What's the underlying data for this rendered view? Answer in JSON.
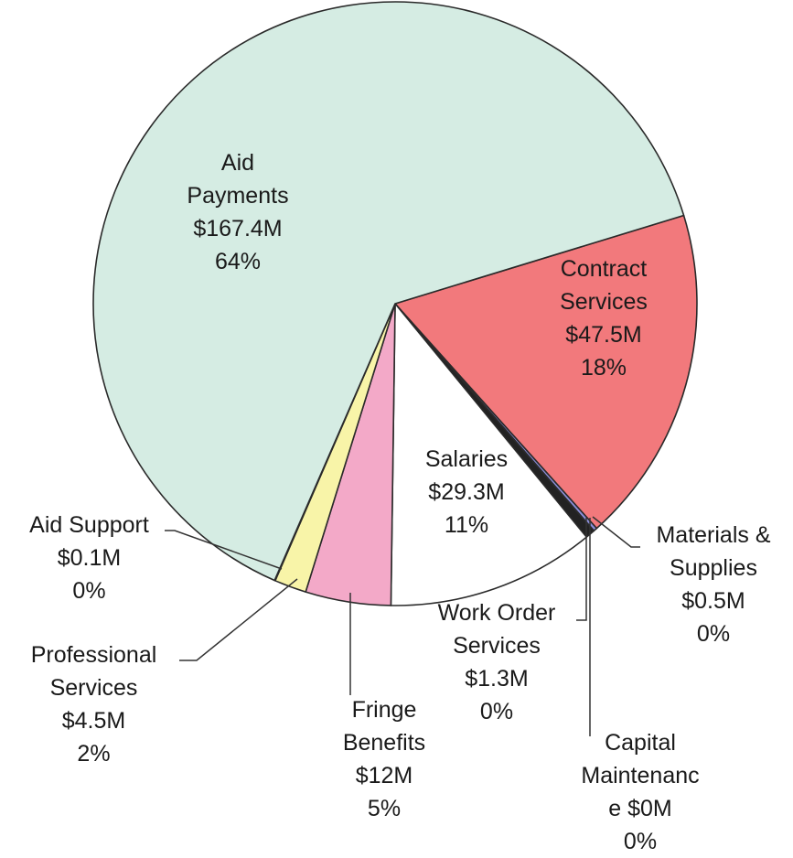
{
  "chart_data": {
    "type": "pie",
    "title": "",
    "start_angle_deg": -17,
    "slices": [
      {
        "key": "contract",
        "lines": [
          "Contract",
          "Services",
          "$47.5M",
          "18%"
        ],
        "name": "Contract Services",
        "value": 47.5,
        "pct": "18%",
        "color": "#f2797c"
      },
      {
        "key": "materials",
        "lines": [
          "Materials &",
          "Supplies",
          "$0.5M",
          "0%"
        ],
        "name": "Materials & Supplies",
        "value": 0.5,
        "pct": "0%",
        "color": "#8b8ed9"
      },
      {
        "key": "capital",
        "lines": [
          "Capital",
          "Maintenanc",
          "e $0M",
          "0%"
        ],
        "name": "Capital Maintenance",
        "value": 0.05,
        "pct": "0%",
        "color": "#b0b7e6"
      },
      {
        "key": "workorder",
        "lines": [
          "Work Order",
          "Services",
          "$1.3M",
          "0%"
        ],
        "name": "Work Order Services",
        "value": 1.3,
        "pct": "0%",
        "color": "#222222"
      },
      {
        "key": "salaries",
        "lines": [
          "Salaries",
          "$29.3M",
          "11%"
        ],
        "name": "Salaries",
        "value": 29.3,
        "pct": "11%",
        "color": "#ffffff"
      },
      {
        "key": "fringe",
        "lines": [
          "Fringe",
          "Benefits",
          "$12M",
          "5%"
        ],
        "name": "Fringe Benefits",
        "value": 12,
        "pct": "5%",
        "color": "#f3a9c8"
      },
      {
        "key": "professional",
        "lines": [
          "Professional",
          "Services",
          "$4.5M",
          "2%"
        ],
        "name": "Professional Services",
        "value": 4.5,
        "pct": "2%",
        "color": "#f8f4a8"
      },
      {
        "key": "aidsupport",
        "lines": [
          "Aid Support",
          "$0.1M",
          "0%"
        ],
        "name": "Aid Support",
        "value": 0.1,
        "pct": "0%",
        "color": "#cfe6dc"
      },
      {
        "key": "aid",
        "lines": [
          "Aid",
          "Payments",
          "$167.4M",
          "64%"
        ],
        "name": "Aid Payments",
        "value": 167.4,
        "pct": "64%",
        "color": "#d5ece3"
      }
    ]
  }
}
